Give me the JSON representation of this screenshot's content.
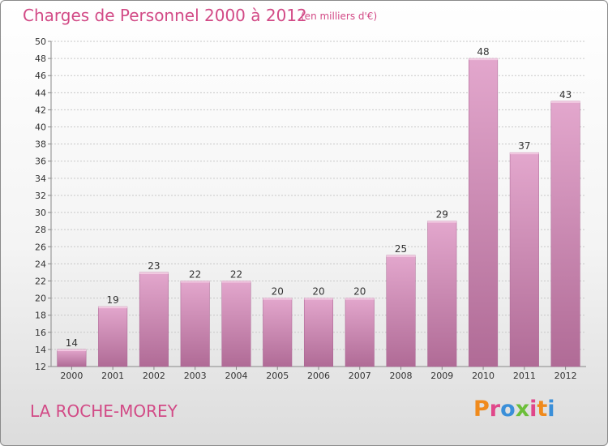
{
  "header": {
    "title": "Charges de Personnel 2000 à 2012",
    "subtitle": "(en milliers d'€)"
  },
  "footer": {
    "place": "LA ROCHE-MOREY",
    "brand": "Proxiti",
    "brand_colors": [
      "#f08a1c",
      "#e0478a",
      "#3a8fd9",
      "#6cbf3a",
      "#e0478a",
      "#f08a1c",
      "#3a8fd9"
    ]
  },
  "chart_data": {
    "type": "bar",
    "categories": [
      "2000",
      "2001",
      "2002",
      "2003",
      "2004",
      "2005",
      "2006",
      "2007",
      "2008",
      "2009",
      "2010",
      "2011",
      "2012"
    ],
    "values": [
      14,
      19,
      23,
      22,
      22,
      20,
      20,
      20,
      25,
      29,
      48,
      37,
      43
    ],
    "ylim": [
      12,
      50
    ],
    "yticks": [
      12,
      14,
      16,
      18,
      20,
      22,
      24,
      26,
      28,
      30,
      32,
      34,
      36,
      38,
      40,
      42,
      44,
      46,
      48,
      50
    ],
    "grid": true,
    "bar_color_top": "#e3a7cd",
    "bar_color_bottom": "#b06b96",
    "value_labels": true
  }
}
